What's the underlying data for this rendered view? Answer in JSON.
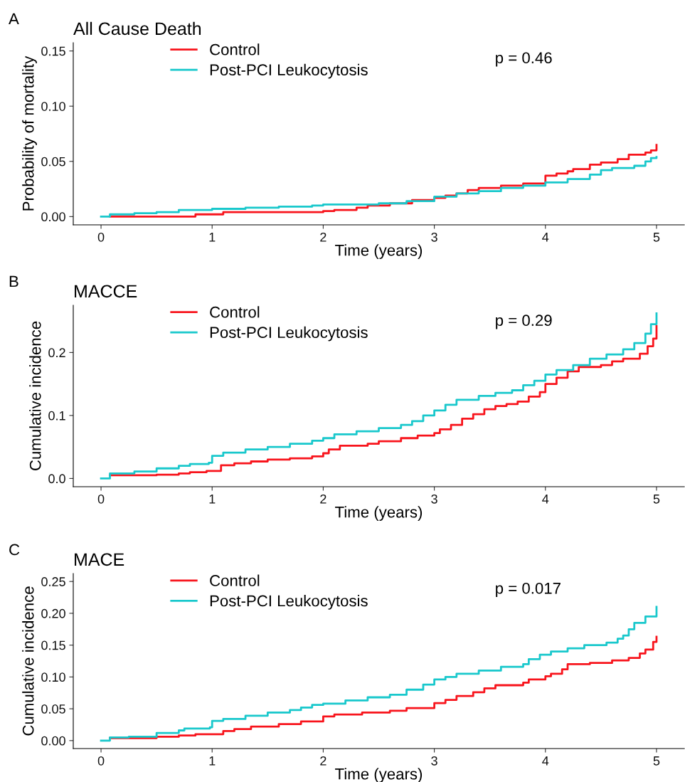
{
  "chart_data": [
    {
      "type": "step",
      "title": "All Cause Death",
      "xlabel": "Time (years)",
      "ylabel": "Probability of mortality",
      "annotations": [
        "A",
        "p = 0.46"
      ],
      "xlim": [
        -0.25,
        5.25
      ],
      "xticks": [
        0,
        1,
        2,
        3,
        4,
        5
      ],
      "ylim": [
        -0.0075,
        0.1575
      ],
      "yticks": [
        {
          "value": 0,
          "label": "0.00"
        },
        {
          "value": 0.05,
          "label": "0.05"
        },
        {
          "value": 0.1,
          "label": "0.10"
        },
        {
          "value": 0.15,
          "label": "0.15"
        }
      ],
      "legend": "top",
      "grid": false,
      "series": [
        {
          "name": "Control",
          "color": "#f8141c",
          "x": [
            0.08,
            0.85,
            1.1,
            2.0,
            2.1,
            2.3,
            2.4,
            2.6,
            2.8,
            3.0,
            3.1,
            3.2,
            3.3,
            3.4,
            3.6,
            3.8,
            4.0,
            4.1,
            4.2,
            4.25,
            4.4,
            4.5,
            4.65,
            4.75,
            4.9,
            4.95,
            5.0
          ],
          "values": [
            0,
            0.002,
            0.004,
            0.005,
            0.006,
            0.008,
            0.01,
            0.012,
            0.015,
            0.017,
            0.019,
            0.021,
            0.024,
            0.026,
            0.028,
            0.03,
            0.037,
            0.039,
            0.041,
            0.043,
            0.047,
            0.049,
            0.052,
            0.056,
            0.058,
            0.06,
            0.065
          ]
        },
        {
          "name": "Post-PCI Leukocytosis",
          "color": "#19c8cc",
          "x": [
            0,
            0.08,
            0.3,
            0.5,
            0.7,
            1.0,
            1.3,
            1.6,
            1.9,
            2.0,
            2.5,
            2.75,
            3.0,
            3.2,
            3.4,
            3.6,
            3.8,
            4.0,
            4.2,
            4.4,
            4.5,
            4.6,
            4.8,
            4.9,
            4.95,
            5.0
          ],
          "values": [
            0,
            0.002,
            0.003,
            0.004,
            0.006,
            0.007,
            0.008,
            0.009,
            0.01,
            0.011,
            0.012,
            0.014,
            0.018,
            0.021,
            0.023,
            0.026,
            0.028,
            0.031,
            0.034,
            0.038,
            0.042,
            0.044,
            0.046,
            0.05,
            0.053,
            0.054
          ]
        }
      ]
    },
    {
      "type": "step",
      "title": "MACCE",
      "xlabel": "Time (years)",
      "ylabel": "Cumulative incidence",
      "annotations": [
        "B",
        "p = 0.29"
      ],
      "xlim": [
        -0.25,
        5.25
      ],
      "xticks": [
        0,
        1,
        2,
        3,
        4,
        5
      ],
      "ylim": [
        -0.0131,
        0.275
      ],
      "yticks": [
        {
          "value": 0,
          "label": "0.0"
        },
        {
          "value": 0.1,
          "label": "0.1"
        },
        {
          "value": 0.2,
          "label": "0.2"
        }
      ],
      "legend": "top",
      "grid": false,
      "series": [
        {
          "name": "Control",
          "color": "#f8141c",
          "x": [
            0.08,
            0.5,
            0.7,
            0.8,
            0.95,
            1.08,
            1.2,
            1.35,
            1.5,
            1.7,
            1.9,
            2.0,
            2.05,
            2.15,
            2.4,
            2.5,
            2.7,
            2.85,
            3.0,
            3.05,
            3.15,
            3.25,
            3.35,
            3.45,
            3.55,
            3.65,
            3.75,
            3.85,
            3.95,
            4.0,
            4.1,
            4.2,
            4.3,
            4.5,
            4.6,
            4.7,
            4.85,
            4.92,
            4.97,
            5.0
          ],
          "values": [
            0.005,
            0.006,
            0.008,
            0.01,
            0.012,
            0.021,
            0.024,
            0.027,
            0.03,
            0.032,
            0.035,
            0.04,
            0.046,
            0.052,
            0.055,
            0.059,
            0.064,
            0.068,
            0.072,
            0.078,
            0.085,
            0.095,
            0.102,
            0.11,
            0.115,
            0.118,
            0.122,
            0.13,
            0.137,
            0.15,
            0.16,
            0.17,
            0.177,
            0.18,
            0.186,
            0.19,
            0.198,
            0.21,
            0.222,
            0.242
          ]
        },
        {
          "name": "Post-PCI Leukocytosis",
          "color": "#19c8cc",
          "x": [
            0,
            0.08,
            0.3,
            0.5,
            0.7,
            0.8,
            0.97,
            1.0,
            1.1,
            1.3,
            1.5,
            1.7,
            1.9,
            2.0,
            2.1,
            2.3,
            2.5,
            2.7,
            2.8,
            2.9,
            3.0,
            3.1,
            3.2,
            3.4,
            3.55,
            3.7,
            3.8,
            3.9,
            4.0,
            4.1,
            4.25,
            4.4,
            4.55,
            4.7,
            4.8,
            4.9,
            4.95,
            5.0
          ],
          "values": [
            0,
            0.008,
            0.011,
            0.016,
            0.02,
            0.023,
            0.025,
            0.036,
            0.041,
            0.046,
            0.05,
            0.055,
            0.06,
            0.064,
            0.07,
            0.075,
            0.08,
            0.085,
            0.091,
            0.1,
            0.108,
            0.117,
            0.125,
            0.131,
            0.136,
            0.14,
            0.148,
            0.155,
            0.165,
            0.172,
            0.18,
            0.19,
            0.197,
            0.205,
            0.215,
            0.23,
            0.245,
            0.262
          ]
        }
      ]
    },
    {
      "type": "step",
      "title": "MACE",
      "xlabel": "Time (years)",
      "ylabel": "Cumulative incidence",
      "annotations": [
        "C",
        "p = 0.017"
      ],
      "xlim": [
        -0.25,
        5.25
      ],
      "xticks": [
        0,
        1,
        2,
        3,
        4,
        5
      ],
      "ylim": [
        -0.0125,
        0.2625
      ],
      "yticks": [
        {
          "value": 0,
          "label": "0.00"
        },
        {
          "value": 0.05,
          "label": "0.05"
        },
        {
          "value": 0.1,
          "label": "0.10"
        },
        {
          "value": 0.15,
          "label": "0.15"
        },
        {
          "value": 0.2,
          "label": "0.20"
        },
        {
          "value": 0.25,
          "label": "0.25"
        }
      ],
      "legend": "top",
      "grid": false,
      "series": [
        {
          "name": "Control",
          "color": "#f8141c",
          "x": [
            0.08,
            0.5,
            0.7,
            0.85,
            1.1,
            1.2,
            1.35,
            1.6,
            1.8,
            2.0,
            2.1,
            2.35,
            2.6,
            2.75,
            3.0,
            3.1,
            3.2,
            3.35,
            3.45,
            3.55,
            3.8,
            3.85,
            4.0,
            4.05,
            4.15,
            4.2,
            4.4,
            4.6,
            4.75,
            4.85,
            4.9,
            4.97,
            5.0
          ],
          "values": [
            0.004,
            0.006,
            0.008,
            0.01,
            0.015,
            0.018,
            0.022,
            0.026,
            0.03,
            0.038,
            0.041,
            0.044,
            0.047,
            0.051,
            0.059,
            0.064,
            0.07,
            0.076,
            0.082,
            0.087,
            0.091,
            0.096,
            0.101,
            0.105,
            0.112,
            0.12,
            0.122,
            0.126,
            0.13,
            0.137,
            0.143,
            0.155,
            0.163
          ]
        },
        {
          "name": "Post-PCI Leukocytosis",
          "color": "#19c8cc",
          "x": [
            0,
            0.08,
            0.25,
            0.5,
            0.7,
            0.75,
            0.98,
            1.0,
            1.1,
            1.3,
            1.5,
            1.7,
            1.8,
            1.9,
            2.0,
            2.2,
            2.4,
            2.6,
            2.75,
            2.9,
            3.0,
            3.1,
            3.2,
            3.4,
            3.6,
            3.8,
            3.85,
            3.95,
            4.05,
            4.2,
            4.35,
            4.55,
            4.65,
            4.7,
            4.75,
            4.8,
            4.9,
            5.0
          ],
          "values": [
            0,
            0.005,
            0.006,
            0.012,
            0.016,
            0.019,
            0.021,
            0.031,
            0.034,
            0.039,
            0.044,
            0.048,
            0.052,
            0.056,
            0.058,
            0.063,
            0.068,
            0.072,
            0.08,
            0.088,
            0.096,
            0.1,
            0.105,
            0.11,
            0.116,
            0.12,
            0.128,
            0.135,
            0.14,
            0.145,
            0.15,
            0.154,
            0.16,
            0.165,
            0.175,
            0.185,
            0.195,
            0.21
          ]
        }
      ]
    }
  ]
}
